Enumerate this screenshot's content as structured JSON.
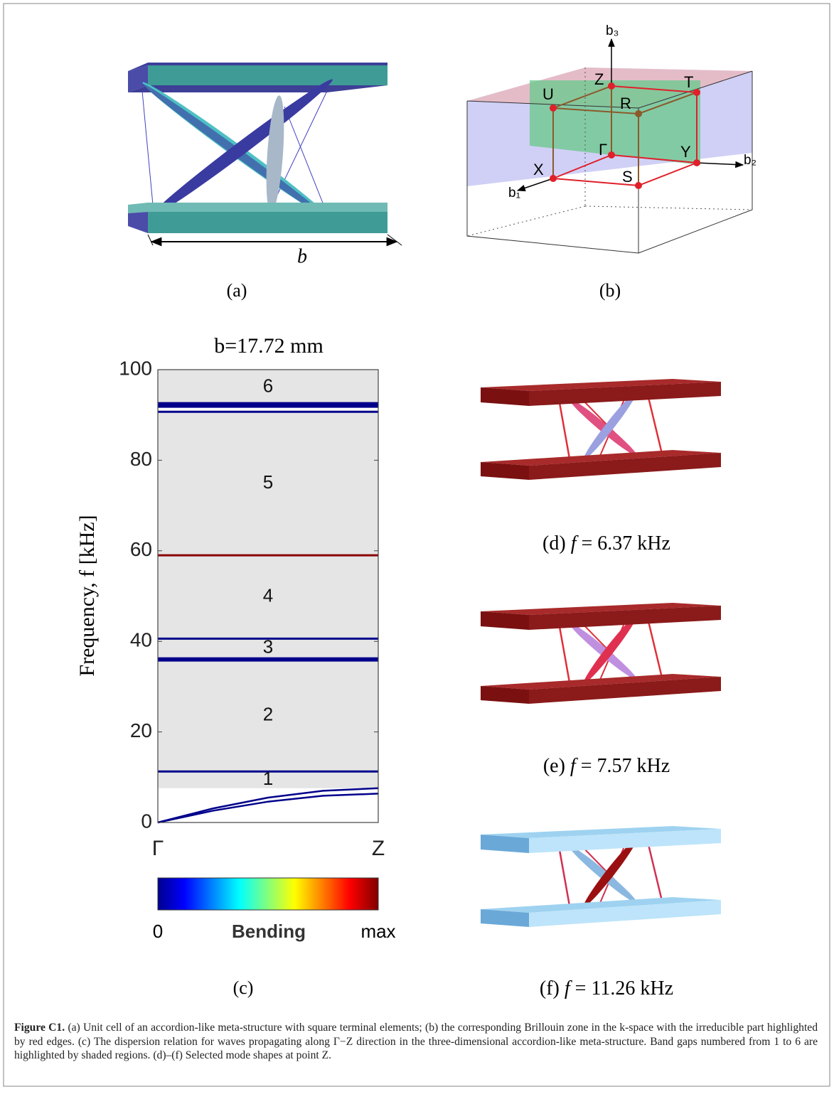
{
  "panels": {
    "a": {
      "tag": "(a)",
      "dimension": "b"
    },
    "b": {
      "tag": "(b)",
      "axes": [
        "b₁",
        "b₂",
        "b₃"
      ],
      "points": [
        "Z",
        "T",
        "U",
        "R",
        "Γ",
        "Y",
        "X",
        "S"
      ]
    },
    "c": {
      "tag": "(c)",
      "colorbar": {
        "min": "0",
        "title": "Bending",
        "max": "max"
      }
    },
    "d": {
      "tag": "(d)",
      "symbol": "f",
      "value": "= 6.37 kHz"
    },
    "e": {
      "tag": "(e)",
      "symbol": "f",
      "value": "= 7.57 kHz"
    },
    "f": {
      "tag": "(f)",
      "symbol": "f",
      "value": "= 11.26 kHz"
    }
  },
  "chart_data": {
    "type": "line",
    "title": "b=17.72 mm",
    "y_label": "Frequency, f [kHz]",
    "x": [
      0,
      0.25,
      0.5,
      0.75,
      1
    ],
    "xlim": [
      0,
      1
    ],
    "xticks": [
      {
        "value": 0,
        "label": "Γ"
      },
      {
        "value": 1,
        "label": "Z"
      }
    ],
    "ylim": [
      0,
      100
    ],
    "yticks": [
      0,
      20,
      40,
      60,
      80,
      100
    ],
    "shade_color": "#e5e5e5",
    "band_gaps": [
      {
        "label": "1",
        "range": [
          7.57,
          11.26
        ]
      },
      {
        "label": "2",
        "range": [
          11.26,
          36.0
        ]
      },
      {
        "label": "3",
        "range": [
          36.4,
          40.6
        ]
      },
      {
        "label": "4",
        "range": [
          40.6,
          59.0
        ]
      },
      {
        "label": "5",
        "range": [
          59.0,
          90.7
        ]
      },
      {
        "label": "6",
        "range": [
          92.2,
          100
        ]
      }
    ],
    "series": [
      {
        "color": "#00008b",
        "line_width": 2.5,
        "values": [
          0,
          2.6,
          4.6,
          5.9,
          6.37
        ]
      },
      {
        "color": "#00008b",
        "line_width": 2.5,
        "values": [
          0,
          3.1,
          5.5,
          7.0,
          7.57
        ]
      },
      {
        "color": "#00008b",
        "line_width": 3,
        "values": [
          11.26,
          11.26,
          11.26,
          11.26,
          11.26
        ]
      },
      {
        "color": "#00008b",
        "line_width": 6,
        "values": [
          36.0,
          36.0,
          36.0,
          36.0,
          36.0
        ]
      },
      {
        "color": "#00008b",
        "line_width": 3,
        "values": [
          40.6,
          40.6,
          40.6,
          40.6,
          40.6
        ]
      },
      {
        "color": "#8b0000",
        "line_width": 3,
        "values": [
          59.0,
          59.0,
          59.0,
          59.0,
          59.0
        ]
      },
      {
        "color": "#00008b",
        "line_width": 3,
        "values": [
          90.7,
          90.7,
          90.7,
          90.7,
          90.7
        ]
      },
      {
        "color": "#00008b",
        "line_width": 8,
        "values": [
          92.2,
          92.2,
          92.2,
          92.2,
          92.2
        ]
      }
    ]
  },
  "caption": {
    "lead": "Figure C1.",
    "text": "(a) Unit cell of an accordion-like meta-structure with square terminal elements; (b) the corresponding Brillouin zone in the k-space with the irreducible part highlighted by red edges. (c) The dispersion relation for waves propagating along Γ−Z direction in the three-dimensional accordion-like meta-structure. Band gaps numbered from 1 to 6 are highlighted by shaded regions. (d)–(f) Selected mode shapes at point Z."
  }
}
